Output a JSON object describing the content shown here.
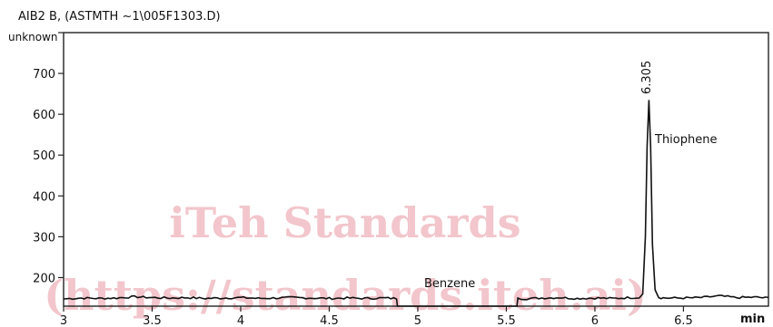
{
  "chart_data": {
    "type": "line",
    "title": "AIB2 B, (ASTMTH ~1\\005F1303.D)",
    "ylabel": "unknown",
    "xlabel": "min",
    "xlim": [
      3.0,
      6.98
    ],
    "ylim": [
      130,
      800
    ],
    "xticks": [
      3,
      3.5,
      4,
      4.5,
      5,
      5.5,
      6,
      6.5
    ],
    "xtick_labels": [
      "3",
      "3.5",
      "4",
      "4.5",
      "5",
      "5.5",
      "6",
      "6.5"
    ],
    "yticks": [
      200,
      300,
      400,
      500,
      600,
      700
    ],
    "ytick_labels": [
      "200",
      "300",
      "400",
      "500",
      "600",
      "700"
    ],
    "grid": false,
    "series": [
      {
        "x": [
          3.0,
          3.1,
          3.2,
          3.3,
          3.4,
          3.5,
          3.6,
          3.7,
          3.8,
          3.9,
          4.0,
          4.1,
          4.2,
          4.3,
          4.4,
          4.5,
          4.6,
          4.7,
          4.8,
          4.88,
          4.885,
          5.0,
          5.2,
          5.4,
          5.56,
          5.565,
          5.6,
          5.7,
          5.8,
          5.9,
          6.0,
          6.1,
          6.2,
          6.25,
          6.27,
          6.285,
          6.295,
          6.305,
          6.315,
          6.325,
          6.34,
          6.36,
          6.4,
          6.5,
          6.6,
          6.7,
          6.8,
          6.9,
          6.98
        ],
        "y": [
          148,
          150,
          149,
          150,
          153,
          151,
          150,
          151,
          149,
          150,
          151,
          149,
          150,
          151,
          150,
          149,
          150,
          149,
          150,
          149,
          130,
          130,
          130,
          130,
          130,
          150,
          148,
          150,
          151,
          149,
          150,
          149,
          151,
          151,
          160,
          300,
          520,
          635,
          520,
          280,
          170,
          151,
          150,
          150,
          151,
          155,
          151,
          152,
          150
        ]
      }
    ],
    "peak_label": "6.305",
    "annotations": [
      "Benzene",
      "Thiophene"
    ]
  },
  "watermark": {
    "line1": "iTeh Standards",
    "line2": "(https://standards.iteh.ai)"
  }
}
